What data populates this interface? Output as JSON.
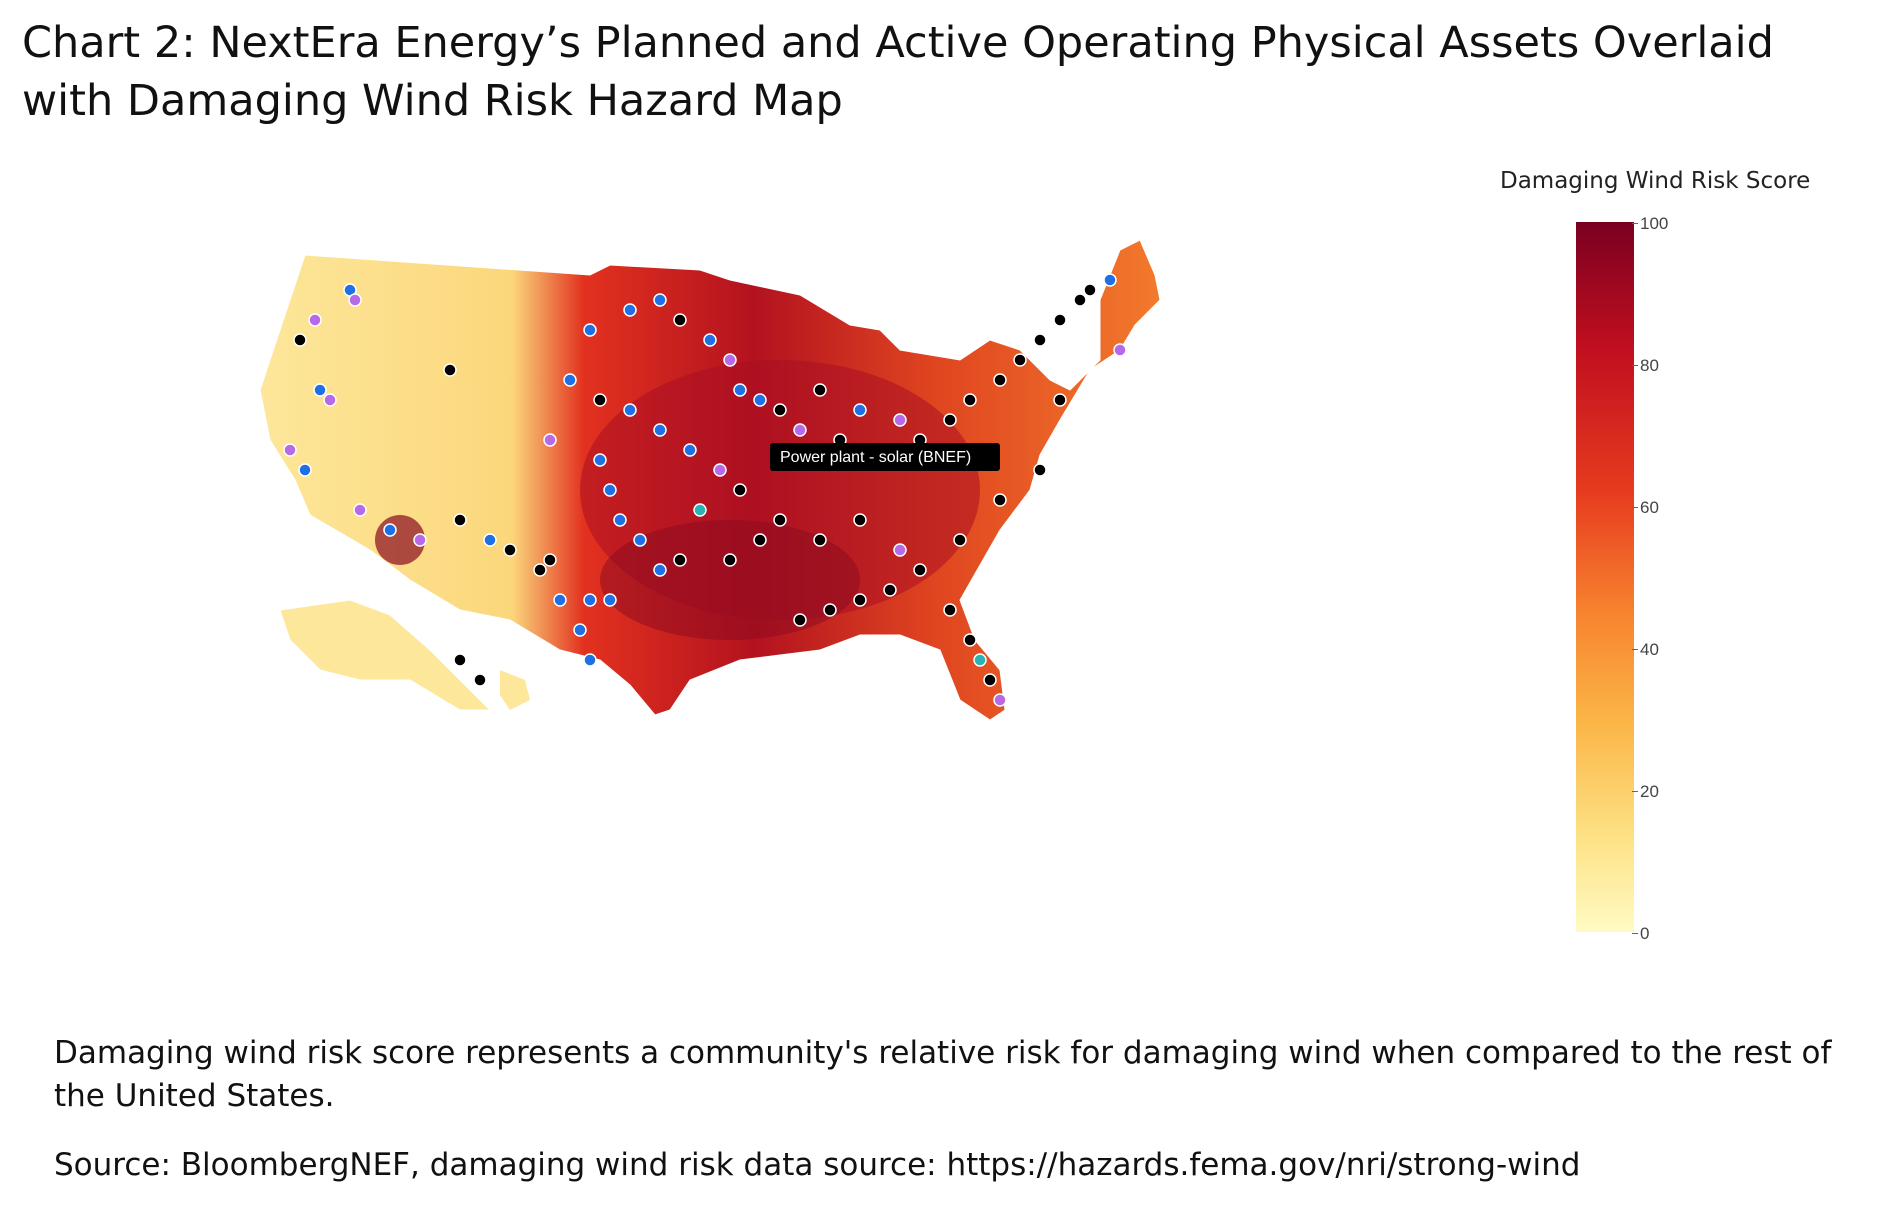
{
  "title": "Chart 2: NextEra Energy’s Planned and Active Operating Physical Assets Overlaid with Damaging Wind Risk Hazard Map",
  "tooltip": "Power plant - solar (BNEF)",
  "legend": {
    "title": "Damaging Wind Risk Score",
    "ticks": [
      "100",
      "80",
      "60",
      "40",
      "20",
      "0"
    ]
  },
  "note": "Damaging wind risk score represents a community's relative risk for damaging wind when compared to the rest of the United States.",
  "source": "Source: BloombergNEF, damaging wind risk data source: https://hazards.fema.gov/nri/strong-wind",
  "colors": {
    "risk_low": "#fffbc4",
    "risk_mid": "#f7832f",
    "risk_high": "#7a0020",
    "asset_black": "#000000",
    "asset_blue": "#1f6fe5",
    "asset_purple": "#b76ae8",
    "asset_teal": "#2ab3b3"
  }
}
